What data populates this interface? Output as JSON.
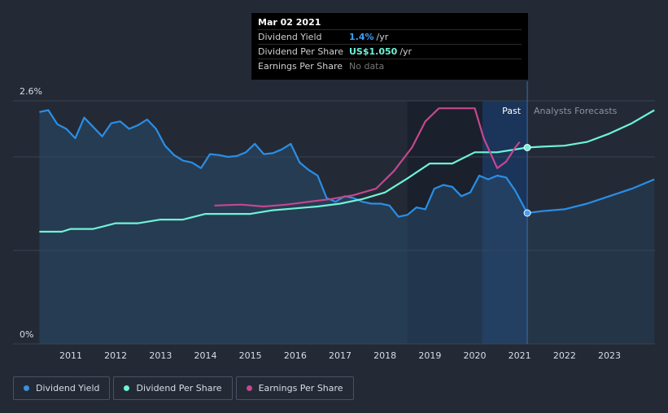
{
  "tooltip": {
    "date": "Mar 02 2021",
    "rows": [
      {
        "label": "Dividend Yield",
        "value": "1.4%",
        "unit": "/yr",
        "color": "#3ba0ff"
      },
      {
        "label": "Dividend Per Share",
        "value": "US$1.050",
        "unit": "/yr",
        "color": "#6ff3d7"
      },
      {
        "label": "Earnings Per Share",
        "value": "No data",
        "unit": "",
        "color": "#777777"
      }
    ]
  },
  "regions": {
    "past_label": "Past",
    "forecast_label": "Analysts Forecasts"
  },
  "legend": [
    {
      "label": "Dividend Yield",
      "color": "#3b8fe0"
    },
    {
      "label": "Dividend Per Share",
      "color": "#6ff3d7"
    },
    {
      "label": "Earnings Per Share",
      "color": "#c4478f"
    }
  ],
  "chart_data": {
    "type": "line",
    "x_ticks": [
      "2011",
      "2012",
      "2013",
      "2014",
      "2015",
      "2016",
      "2017",
      "2018",
      "2019",
      "2020",
      "2021",
      "2022",
      "2023"
    ],
    "xlim": [
      2010.3,
      2024.0
    ],
    "y_ticks": [
      "2.6%",
      "0%"
    ],
    "ylim": [
      0,
      2.6
    ],
    "current_date": 2021.17,
    "series": [
      {
        "name": "Dividend Yield",
        "color": "#2a8ee6",
        "points": [
          [
            2010.3,
            2.48
          ],
          [
            2010.5,
            2.5
          ],
          [
            2010.7,
            2.35
          ],
          [
            2010.9,
            2.3
          ],
          [
            2011.1,
            2.2
          ],
          [
            2011.3,
            2.42
          ],
          [
            2011.5,
            2.32
          ],
          [
            2011.7,
            2.22
          ],
          [
            2011.9,
            2.36
          ],
          [
            2012.1,
            2.38
          ],
          [
            2012.3,
            2.3
          ],
          [
            2012.5,
            2.34
          ],
          [
            2012.7,
            2.4
          ],
          [
            2012.9,
            2.3
          ],
          [
            2013.1,
            2.12
          ],
          [
            2013.3,
            2.02
          ],
          [
            2013.5,
            1.96
          ],
          [
            2013.7,
            1.94
          ],
          [
            2013.9,
            1.88
          ],
          [
            2014.1,
            2.03
          ],
          [
            2014.3,
            2.02
          ],
          [
            2014.5,
            2.0
          ],
          [
            2014.7,
            2.01
          ],
          [
            2014.9,
            2.05
          ],
          [
            2015.1,
            2.14
          ],
          [
            2015.3,
            2.03
          ],
          [
            2015.5,
            2.04
          ],
          [
            2015.7,
            2.08
          ],
          [
            2015.9,
            2.14
          ],
          [
            2016.1,
            1.94
          ],
          [
            2016.3,
            1.86
          ],
          [
            2016.5,
            1.8
          ],
          [
            2016.7,
            1.56
          ],
          [
            2016.9,
            1.52
          ],
          [
            2017.1,
            1.58
          ],
          [
            2017.3,
            1.56
          ],
          [
            2017.5,
            1.52
          ],
          [
            2017.7,
            1.5
          ],
          [
            2017.9,
            1.5
          ],
          [
            2018.1,
            1.48
          ],
          [
            2018.3,
            1.36
          ],
          [
            2018.5,
            1.38
          ],
          [
            2018.7,
            1.46
          ],
          [
            2018.9,
            1.44
          ],
          [
            2019.1,
            1.66
          ],
          [
            2019.3,
            1.7
          ],
          [
            2019.5,
            1.68
          ],
          [
            2019.7,
            1.58
          ],
          [
            2019.9,
            1.62
          ],
          [
            2020.1,
            1.8
          ],
          [
            2020.3,
            1.76
          ],
          [
            2020.5,
            1.8
          ],
          [
            2020.7,
            1.78
          ],
          [
            2020.9,
            1.64
          ],
          [
            2021.17,
            1.4
          ]
        ],
        "forecast": [
          [
            2021.17,
            1.4
          ],
          [
            2021.5,
            1.42
          ],
          [
            2022.0,
            1.44
          ],
          [
            2022.5,
            1.5
          ],
          [
            2023.0,
            1.58
          ],
          [
            2023.5,
            1.66
          ],
          [
            2024.0,
            1.76
          ]
        ]
      },
      {
        "name": "Dividend Per Share",
        "color": "#6ff3d7",
        "points": [
          [
            2010.3,
            1.2
          ],
          [
            2010.8,
            1.2
          ],
          [
            2011.0,
            1.23
          ],
          [
            2011.5,
            1.23
          ],
          [
            2012.0,
            1.29
          ],
          [
            2012.5,
            1.29
          ],
          [
            2013.0,
            1.33
          ],
          [
            2013.5,
            1.33
          ],
          [
            2014.0,
            1.39
          ],
          [
            2014.5,
            1.39
          ],
          [
            2015.0,
            1.39
          ],
          [
            2015.5,
            1.43
          ],
          [
            2016.0,
            1.45
          ],
          [
            2016.5,
            1.47
          ],
          [
            2017.0,
            1.5
          ],
          [
            2017.5,
            1.55
          ],
          [
            2018.0,
            1.62
          ],
          [
            2018.5,
            1.77
          ],
          [
            2019.0,
            1.93
          ],
          [
            2019.5,
            1.93
          ],
          [
            2020.0,
            2.05
          ],
          [
            2020.5,
            2.05
          ],
          [
            2021.17,
            2.1
          ]
        ],
        "forecast": [
          [
            2021.17,
            2.1
          ],
          [
            2021.5,
            2.11
          ],
          [
            2022.0,
            2.12
          ],
          [
            2022.5,
            2.16
          ],
          [
            2023.0,
            2.25
          ],
          [
            2023.5,
            2.36
          ],
          [
            2024.0,
            2.5
          ]
        ]
      },
      {
        "name": "Earnings Per Share",
        "color": "#c4478f",
        "points": [
          [
            2014.2,
            1.48
          ],
          [
            2014.8,
            1.49
          ],
          [
            2015.3,
            1.47
          ],
          [
            2015.8,
            1.49
          ],
          [
            2016.3,
            1.52
          ],
          [
            2016.8,
            1.55
          ],
          [
            2017.3,
            1.59
          ],
          [
            2017.8,
            1.66
          ],
          [
            2018.2,
            1.85
          ],
          [
            2018.6,
            2.1
          ],
          [
            2018.9,
            2.38
          ],
          [
            2019.2,
            2.52
          ],
          [
            2019.6,
            2.52
          ],
          [
            2020.0,
            2.52
          ],
          [
            2020.2,
            2.2
          ],
          [
            2020.5,
            1.88
          ],
          [
            2020.7,
            1.95
          ],
          [
            2020.9,
            2.1
          ],
          [
            2021.0,
            2.16
          ]
        ]
      }
    ]
  }
}
